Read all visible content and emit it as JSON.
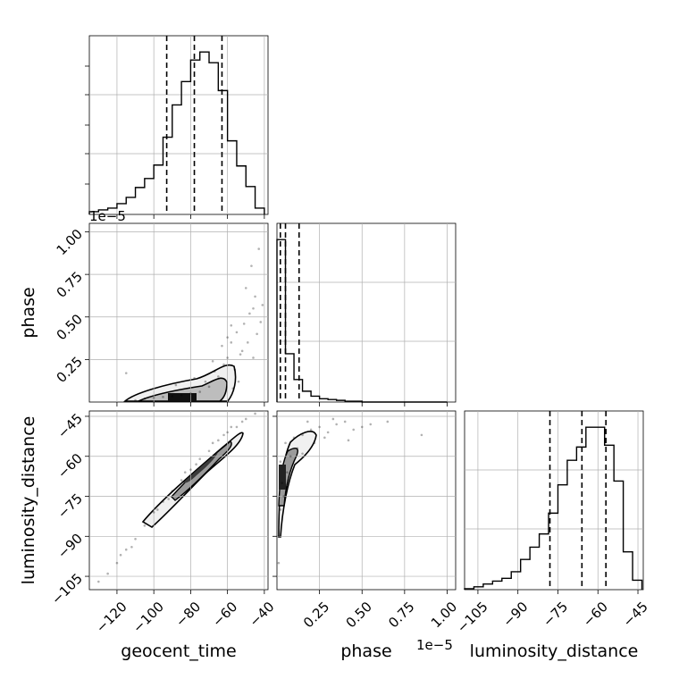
{
  "chart_data": {
    "type": "corner",
    "parameters": [
      "geocent_time",
      "phase",
      "luminosity_distance"
    ],
    "axis_labels": {
      "x": [
        "geocent_time",
        "phase",
        "luminosity_distance"
      ],
      "y": [
        "",
        "phase",
        "luminosity_distance"
      ]
    },
    "phase_offset_label": "1e−5",
    "ranges": {
      "geocent_time": [
        -135,
        -38
      ],
      "phase": [
        0,
        1.05
      ],
      "luminosity_distance": [
        -110,
        -43
      ]
    },
    "ticks": {
      "geocent_time": [
        -120,
        -100,
        -80,
        -60,
        -40
      ],
      "phase_x": [
        0.25,
        0.5,
        0.75,
        1.0
      ],
      "phase_y": [
        0.25,
        0.5,
        0.75,
        1.0
      ],
      "luminosity_distance": [
        -105,
        -90,
        -75,
        -60,
        -45
      ]
    },
    "tick_labels": {
      "geocent_time": [
        "−120",
        "−100",
        "−80",
        "−60",
        "−40"
      ],
      "phase_x": [
        "0.25",
        "0.50",
        "0.75",
        "1.00"
      ],
      "phase_y": [
        "0.25",
        "0.50",
        "0.75",
        "1.00"
      ],
      "luminosity_distance": [
        "−105",
        "−90",
        "−75",
        "−60",
        "−45"
      ]
    },
    "quantiles": {
      "geocent_time": [
        -93,
        -78,
        -63
      ],
      "phase": [
        0.02,
        0.05,
        0.13
      ],
      "luminosity_distance": [
        -78,
        -66,
        -57
      ]
    },
    "histograms": {
      "geocent_time": {
        "edges": [
          -135,
          -130,
          -125,
          -120,
          -115,
          -110,
          -105,
          -100,
          -95,
          -90,
          -85,
          -80,
          -75,
          -70,
          -65,
          -60,
          -55,
          -50,
          -45,
          -40
        ],
        "counts": [
          3,
          5,
          7,
          12,
          19,
          30,
          40,
          55,
          86,
          122,
          148,
          172,
          181,
          169,
          138,
          82,
          54,
          31,
          7
        ]
      },
      "phase": {
        "edges": [
          0,
          0.05,
          0.1,
          0.15,
          0.2,
          0.25,
          0.3,
          0.35,
          0.4,
          0.45,
          0.5,
          0.55,
          0.6,
          0.65,
          0.7,
          0.75,
          0.8,
          0.85,
          0.9,
          0.95,
          1.0
        ],
        "counts": [
          195,
          58,
          27,
          13,
          7,
          4,
          3,
          2,
          1,
          1,
          0,
          0,
          0,
          0,
          0,
          0,
          0,
          0,
          0,
          0
        ]
      },
      "luminosity_distance": {
        "edges": [
          -110,
          -106.5,
          -103,
          -99.5,
          -96,
          -92.5,
          -89,
          -85.5,
          -82,
          -78.5,
          -75,
          -71.5,
          -68,
          -64.5,
          -61,
          -57.5,
          -54,
          -50.5,
          -47,
          -43.5
        ],
        "counts": [
          1,
          3,
          6,
          9,
          12,
          19,
          32,
          45,
          59,
          81,
          111,
          137,
          151,
          172,
          172,
          153,
          115,
          40,
          10
        ]
      }
    },
    "scatter_samples": {
      "geocent_time_vs_phase": [
        [
          -62,
          0.22
        ],
        [
          -58,
          0.35
        ],
        [
          -55,
          0.41
        ],
        [
          -52,
          0.3
        ],
        [
          -48,
          0.52
        ],
        [
          -45,
          0.62
        ],
        [
          -50,
          0.67
        ],
        [
          -47,
          0.8
        ],
        [
          -43,
          0.9
        ],
        [
          -42,
          0.47
        ],
        [
          -65,
          0.15
        ],
        [
          -70,
          0.09
        ],
        [
          -75,
          0.06
        ],
        [
          -80,
          0.05
        ],
        [
          -85,
          0.04
        ],
        [
          -90,
          0.035
        ],
        [
          -95,
          0.03
        ],
        [
          -100,
          0.025
        ],
        [
          -105,
          0.02
        ],
        [
          -110,
          0.01
        ],
        [
          -53,
          0.28
        ],
        [
          -56,
          0.19
        ],
        [
          -60,
          0.26
        ],
        [
          -49,
          0.35
        ],
        [
          -51,
          0.46
        ],
        [
          -44,
          0.4
        ],
        [
          -46,
          0.55
        ],
        [
          -54,
          0.12
        ],
        [
          -67,
          0.18
        ],
        [
          -72,
          0.12
        ],
        [
          -58,
          0.45
        ],
        [
          -63,
          0.33
        ],
        [
          -41,
          0.57
        ],
        [
          -46,
          0.26
        ],
        [
          -57,
          0.08
        ],
        [
          -115,
          0.17
        ],
        [
          -88,
          0.1
        ],
        [
          -78,
          0.14
        ],
        [
          -68,
          0.24
        ],
        [
          -60,
          0.38
        ]
      ],
      "geocent_time_vs_luminosity_distance": [
        [
          -130,
          -107
        ],
        [
          -125,
          -104
        ],
        [
          -120,
          -100
        ],
        [
          -115,
          -95
        ],
        [
          -110,
          -91
        ],
        [
          -105,
          -86
        ],
        [
          -100,
          -81
        ],
        [
          -95,
          -77
        ],
        [
          -90,
          -73
        ],
        [
          -85,
          -69
        ],
        [
          -80,
          -65
        ],
        [
          -75,
          -61
        ],
        [
          -70,
          -58
        ],
        [
          -65,
          -54
        ],
        [
          -60,
          -51
        ],
        [
          -55,
          -49
        ],
        [
          -50,
          -46
        ],
        [
          -45,
          -44
        ],
        [
          -112,
          -94
        ],
        [
          -98,
          -80
        ],
        [
          -83,
          -66
        ],
        [
          -68,
          -55
        ],
        [
          -58,
          -49
        ],
        [
          -118,
          -97
        ],
        [
          -92,
          -76
        ],
        [
          -77,
          -63
        ],
        [
          -62,
          -52
        ],
        [
          -52,
          -47
        ]
      ],
      "phase_vs_luminosity_distance": [
        [
          0.05,
          -55
        ],
        [
          0.1,
          -53
        ],
        [
          0.15,
          -52
        ],
        [
          0.2,
          -50
        ],
        [
          0.25,
          -49
        ],
        [
          0.3,
          -51
        ],
        [
          0.35,
          -48
        ],
        [
          0.4,
          -47
        ],
        [
          0.45,
          -50
        ],
        [
          0.5,
          -49
        ],
        [
          0.55,
          -48
        ],
        [
          0.65,
          -47
        ],
        [
          0.85,
          -52
        ],
        [
          0.03,
          -70
        ],
        [
          0.02,
          -80
        ],
        [
          0.01,
          -90
        ],
        [
          0.02,
          -62
        ],
        [
          0.08,
          -60
        ],
        [
          0.12,
          -57
        ],
        [
          0.28,
          -53
        ],
        [
          0.18,
          -47
        ],
        [
          0.22,
          -55
        ],
        [
          0.33,
          -46
        ],
        [
          0.42,
          -54
        ],
        [
          0.01,
          -100
        ],
        [
          0.04,
          -75
        ],
        [
          0.06,
          -66
        ],
        [
          0.15,
          -59
        ]
      ]
    }
  }
}
